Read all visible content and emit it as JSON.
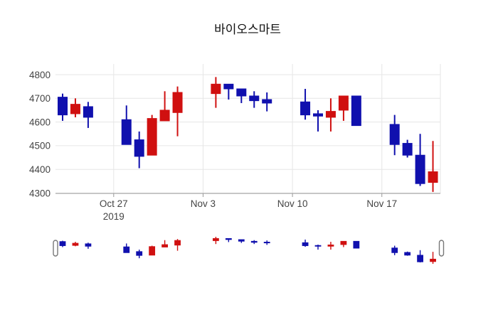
{
  "title": "바이오스마트",
  "chart_data": {
    "type": "candlestick",
    "title": "바이오스마트",
    "ylim": [
      4300,
      4800
    ],
    "y_ticks": [
      4800,
      4700,
      4600,
      4500,
      4400,
      4300
    ],
    "x_ticks": [
      {
        "label": "Oct 27",
        "sublabel": "2019",
        "day": 4
      },
      {
        "label": "Nov 3",
        "sublabel": "",
        "day": 11
      },
      {
        "label": "Nov 10",
        "sublabel": "",
        "day": 18
      },
      {
        "label": "Nov 17",
        "sublabel": "",
        "day": 25
      }
    ],
    "colors": {
      "increasing": "#d01010",
      "decreasing": "#1010ae",
      "grid": "#e6e6e6",
      "axis_line": "#999999",
      "tick_text": "#444444",
      "handle_border": "#777777",
      "handle_fill": "#ffffff",
      "background": "#ffffff"
    },
    "legend": "none",
    "grid_on": true,
    "rangeslider": {
      "present": true,
      "full_range_selected": true
    },
    "candles": [
      {
        "date": "Oct 23",
        "day": 0,
        "open": 4705,
        "high": 4720,
        "low": 4605,
        "close": 4630
      },
      {
        "date": "Oct 24",
        "day": 1,
        "open": 4635,
        "high": 4700,
        "low": 4620,
        "close": 4675
      },
      {
        "date": "Oct 25",
        "day": 2,
        "open": 4665,
        "high": 4685,
        "low": 4575,
        "close": 4620
      },
      {
        "date": "Oct 28",
        "day": 5,
        "open": 4610,
        "high": 4670,
        "low": 4505,
        "close": 4505
      },
      {
        "date": "Oct 29",
        "day": 6,
        "open": 4525,
        "high": 4560,
        "low": 4405,
        "close": 4455
      },
      {
        "date": "Oct 30",
        "day": 7,
        "open": 4460,
        "high": 4630,
        "low": 4460,
        "close": 4615
      },
      {
        "date": "Oct 31",
        "day": 8,
        "open": 4605,
        "high": 4730,
        "low": 4605,
        "close": 4650
      },
      {
        "date": "Nov 1",
        "day": 9,
        "open": 4640,
        "high": 4750,
        "low": 4540,
        "close": 4725
      },
      {
        "date": "Nov 4",
        "day": 12,
        "open": 4720,
        "high": 4790,
        "low": 4660,
        "close": 4760
      },
      {
        "date": "Nov 5",
        "day": 13,
        "open": 4760,
        "high": 4760,
        "low": 4695,
        "close": 4740
      },
      {
        "date": "Nov 6",
        "day": 14,
        "open": 4740,
        "high": 4740,
        "low": 4680,
        "close": 4710
      },
      {
        "date": "Nov 7",
        "day": 15,
        "open": 4710,
        "high": 4730,
        "low": 4660,
        "close": 4690
      },
      {
        "date": "Nov 8",
        "day": 16,
        "open": 4695,
        "high": 4725,
        "low": 4645,
        "close": 4680
      },
      {
        "date": "Nov 11",
        "day": 19,
        "open": 4685,
        "high": 4740,
        "low": 4610,
        "close": 4630
      },
      {
        "date": "Nov 12",
        "day": 20,
        "open": 4635,
        "high": 4650,
        "low": 4560,
        "close": 4625
      },
      {
        "date": "Nov 13",
        "day": 21,
        "open": 4620,
        "high": 4700,
        "low": 4560,
        "close": 4645
      },
      {
        "date": "Nov 14",
        "day": 22,
        "open": 4650,
        "high": 4710,
        "low": 4605,
        "close": 4710
      },
      {
        "date": "Nov 15",
        "day": 23,
        "open": 4710,
        "high": 4710,
        "low": 4585,
        "close": 4585
      },
      {
        "date": "Nov 18",
        "day": 26,
        "open": 4590,
        "high": 4630,
        "low": 4460,
        "close": 4505
      },
      {
        "date": "Nov 19",
        "day": 27,
        "open": 4510,
        "high": 4525,
        "low": 4450,
        "close": 4460
      },
      {
        "date": "Nov 20",
        "day": 28,
        "open": 4460,
        "high": 4550,
        "low": 4330,
        "close": 4340
      },
      {
        "date": "Nov 21",
        "day": 29,
        "open": 4345,
        "high": 4520,
        "low": 4305,
        "close": 4390
      }
    ]
  }
}
